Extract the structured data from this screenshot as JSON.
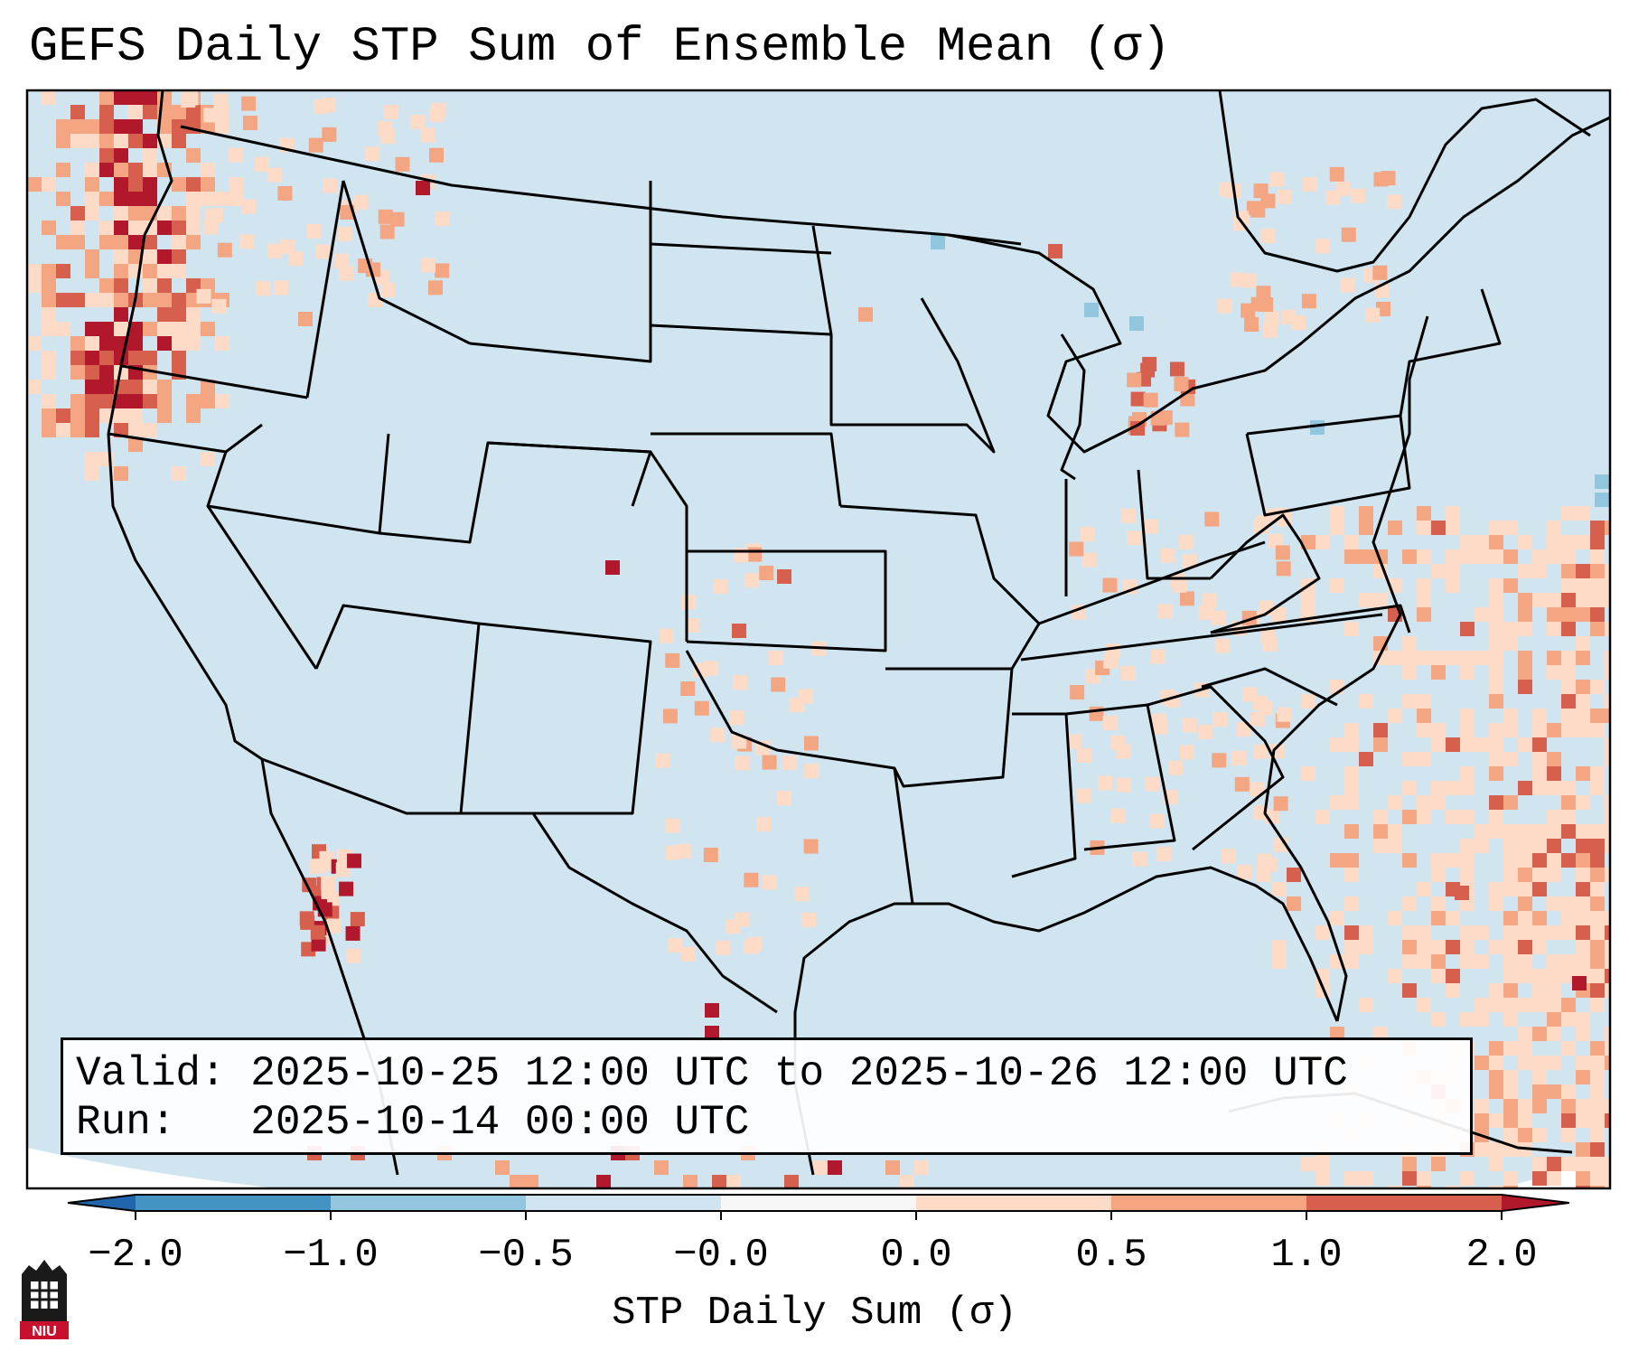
{
  "title": "GEFS Daily STP Sum of Ensemble Mean (σ)",
  "info": {
    "valid": "Valid: 2025-10-25 12:00 UTC to 2025-10-26 12:00 UTC",
    "run": "Run:   2025-10-14 00:00 UTC"
  },
  "colorbar": {
    "label": "STP Daily Sum (σ)",
    "ticks": [
      "−2.0",
      "−1.0",
      "−0.5",
      "−0.0",
      "0.0",
      "0.5",
      "1.0",
      "2.0"
    ],
    "colors": [
      "#4393c3",
      "#92c5de",
      "#d1e5f0",
      "#f7f7f7",
      "#fddbc7",
      "#f4a582",
      "#d6604d"
    ],
    "extend_low": "#2166ac",
    "extend_high": "#b2182b"
  },
  "map": {
    "background": "#d1e5f0",
    "ocean_outside": "#ffffff",
    "regions": "CONUS, southern Canada, northern Mexico, Gulf of Mexico, western Atlantic"
  },
  "logo": {
    "text": "NIU"
  }
}
